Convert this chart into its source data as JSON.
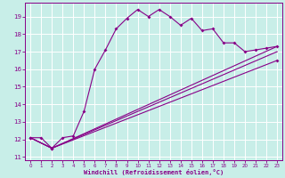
{
  "background_color": "#c8eee8",
  "line_color": "#880088",
  "grid_color": "#aaddcc",
  "xlim_min": -0.5,
  "xlim_max": 23.5,
  "ylim_min": 10.8,
  "ylim_max": 19.8,
  "yticks": [
    11,
    12,
    13,
    14,
    15,
    16,
    17,
    18,
    19
  ],
  "xticks": [
    0,
    1,
    2,
    3,
    4,
    5,
    6,
    7,
    8,
    9,
    10,
    11,
    12,
    13,
    14,
    15,
    16,
    17,
    18,
    19,
    20,
    21,
    22,
    23
  ],
  "xlabel": "Windchill (Refroidissement éolien,°C)",
  "curve_x": [
    0,
    1,
    2,
    3,
    4,
    5,
    6,
    7,
    8,
    9,
    10,
    11,
    12,
    13,
    14,
    15,
    16,
    17,
    18,
    19,
    20,
    21,
    22,
    23
  ],
  "curve1_y": [
    12.1,
    12.1,
    11.5,
    12.1,
    12.2,
    13.6,
    16.0,
    17.1,
    18.3,
    18.9,
    19.4,
    19.0,
    19.4,
    19.0,
    18.5,
    18.9,
    18.2,
    18.3,
    17.5,
    17.5,
    17.0,
    17.1,
    17.2,
    17.3
  ],
  "line2_x": [
    0,
    2,
    23
  ],
  "line2_y": [
    12.1,
    11.5,
    16.5
  ],
  "line3_x": [
    0,
    2,
    23
  ],
  "line3_y": [
    12.1,
    11.5,
    17.0
  ],
  "line4_x": [
    0,
    2,
    23
  ],
  "line4_y": [
    12.1,
    11.5,
    17.3
  ]
}
